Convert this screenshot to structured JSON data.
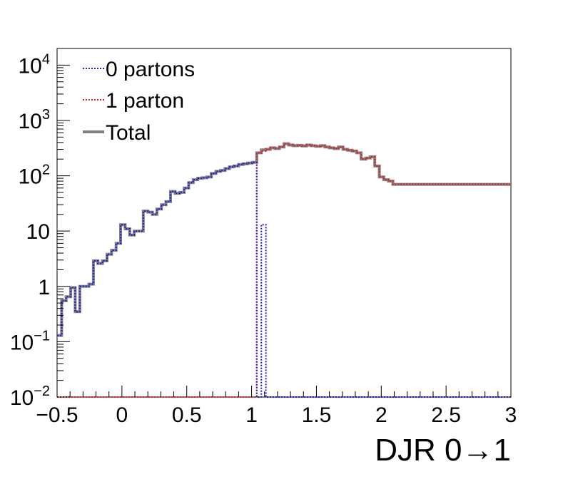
{
  "chart_data": {
    "type": "line",
    "title": "",
    "xlabel": "DJR 0→1",
    "ylabel": "",
    "xlim": [
      -0.5,
      3
    ],
    "ylim": [
      0.01,
      20000
    ],
    "yscale": "log",
    "x_ticks": [
      -0.5,
      0,
      0.5,
      1,
      1.5,
      2,
      2.5,
      3
    ],
    "x_tick_labels": [
      "−0.5",
      "0",
      "0.5",
      "1",
      "1.5",
      "2",
      "2.5",
      "3"
    ],
    "y_ticks": [
      {
        "value": 0.01,
        "base": "10",
        "exp": "−2"
      },
      {
        "value": 0.1,
        "base": "10",
        "exp": "−1"
      },
      {
        "value": 1,
        "base": "1",
        "exp": ""
      },
      {
        "value": 10,
        "base": "10",
        "exp": ""
      },
      {
        "value": 100,
        "base": "10",
        "exp": "2"
      },
      {
        "value": 1000,
        "base": "10",
        "exp": "3"
      },
      {
        "value": 10000,
        "base": "10",
        "exp": "4"
      }
    ],
    "bin_width": 0.035,
    "legend_position": "top-left",
    "series": [
      {
        "name": "0 partons",
        "color": "#1a1ad6",
        "style": "dotted",
        "x_start": -0.5,
        "values": [
          0.13,
          0.55,
          0.65,
          0.95,
          0.35,
          1.0,
          1.0,
          1.1,
          2.9,
          2.6,
          2.9,
          3.8,
          4.5,
          6.0,
          13.0,
          11.0,
          8.5,
          10.0,
          10.0,
          23.0,
          22.0,
          20.0,
          25.0,
          30.0,
          34.0,
          52.0,
          48.0,
          50.0,
          60.0,
          75.0,
          85.0,
          90.0,
          92.0,
          95.0,
          110.0,
          120.0,
          125.0,
          135.0,
          145.0,
          150.0,
          160.0,
          165.0,
          170.0,
          175.0,
          0.01,
          13.0,
          0.01,
          0.01,
          0.01,
          0.01,
          0.01,
          0.01,
          0.01,
          0.01,
          0.01,
          0.01,
          0.01,
          0.01,
          0.01,
          0.01,
          0.01,
          0.01,
          0.01,
          0.01,
          0.01,
          0.01,
          0.01,
          0.01,
          0.01,
          0.01,
          0.01,
          0.01,
          0.01,
          0.01,
          0.01,
          0.01,
          0.01,
          0.01,
          0.01,
          0.01,
          0.01,
          0.01,
          0.01,
          0.01,
          0.01,
          0.01,
          0.01,
          0.01,
          0.01,
          0.01,
          0.01,
          0.01,
          0.01,
          0.01,
          0.01,
          0.01,
          0.01,
          0.01,
          0.01,
          0.01
        ]
      },
      {
        "name": "1 parton",
        "color": "#e41a1c",
        "style": "dotted",
        "x_start": -0.5,
        "values": [
          0.01,
          0.01,
          0.01,
          0.01,
          0.01,
          0.01,
          0.01,
          0.01,
          0.01,
          0.01,
          0.01,
          0.01,
          0.01,
          0.01,
          0.01,
          0.01,
          0.01,
          0.01,
          0.01,
          0.01,
          0.01,
          0.01,
          0.01,
          0.01,
          0.01,
          0.01,
          0.01,
          0.01,
          0.01,
          0.01,
          0.01,
          0.01,
          0.01,
          0.01,
          0.01,
          0.01,
          0.01,
          0.01,
          0.01,
          0.01,
          0.01,
          0.01,
          0.01,
          0.01,
          260.0,
          280.0,
          300.0,
          320.0,
          310.0,
          330.0,
          380.0,
          360.0,
          350.0,
          355.0,
          345.0,
          360.0,
          350.0,
          340.0,
          350.0,
          330.0,
          320.0,
          310.0,
          330.0,
          300.0,
          290.0,
          280.0,
          260.0,
          200.0,
          210.0,
          220.0,
          150.0,
          95.0,
          85.0,
          80.0,
          70.0,
          70.0,
          70.0,
          70.0,
          70.0,
          70.0,
          70.0,
          70.0,
          70.0,
          70.0,
          70.0,
          70.0,
          70.0,
          70.0,
          70.0,
          70.0,
          70.0,
          70.0,
          70.0,
          70.0,
          70.0,
          70.0,
          70.0,
          70.0,
          70.0,
          70.0
        ]
      },
      {
        "name": "Total",
        "color": "#808080",
        "style": "solid",
        "x_start": -0.5,
        "values": [
          0.13,
          0.55,
          0.65,
          0.95,
          0.35,
          1.0,
          1.0,
          1.1,
          2.9,
          2.6,
          2.9,
          3.8,
          4.5,
          6.0,
          13.0,
          11.0,
          8.5,
          10.0,
          10.0,
          23.0,
          22.0,
          20.0,
          25.0,
          30.0,
          34.0,
          52.0,
          48.0,
          50.0,
          60.0,
          75.0,
          85.0,
          90.0,
          92.0,
          95.0,
          110.0,
          120.0,
          125.0,
          135.0,
          145.0,
          150.0,
          160.0,
          165.0,
          170.0,
          175.0,
          260.0,
          293.0,
          300.0,
          320.0,
          310.0,
          330.0,
          380.0,
          360.0,
          350.0,
          355.0,
          345.0,
          360.0,
          350.0,
          340.0,
          350.0,
          330.0,
          320.0,
          310.0,
          330.0,
          300.0,
          290.0,
          280.0,
          260.0,
          200.0,
          210.0,
          220.0,
          150.0,
          95.0,
          85.0,
          80.0,
          70.0,
          70.0,
          70.0,
          70.0,
          70.0,
          70.0,
          70.0,
          70.0,
          70.0,
          70.0,
          70.0,
          70.0,
          70.0,
          70.0,
          70.0,
          70.0,
          70.0,
          70.0,
          70.0,
          70.0,
          70.0,
          70.0,
          70.0,
          70.0,
          70.0,
          70.0
        ]
      }
    ]
  }
}
